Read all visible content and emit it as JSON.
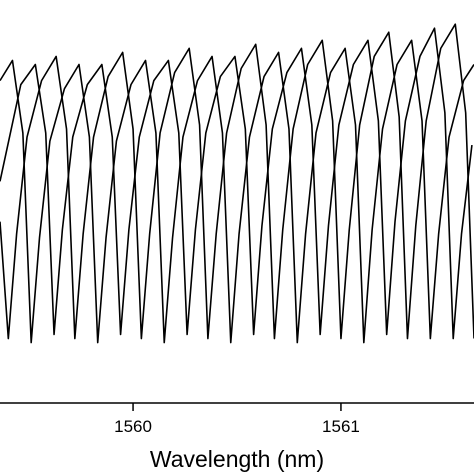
{
  "chart_data": {
    "type": "line",
    "xlabel": "Wavelength (nm)",
    "color": "#000000",
    "xlim": [
      1559.36,
      1561.64
    ],
    "xticks": [
      1560,
      1561
    ],
    "ylim": [
      0,
      1
    ],
    "series": [
      {
        "x": [
          1559.36,
          1559.4,
          1559.44,
          1559.49,
          1559.56,
          1559.63,
          1559.68,
          1559.72,
          1559.76,
          1559.81,
          1559.88,
          1559.95,
          1560.0,
          1560.04,
          1560.08,
          1560.13,
          1560.2,
          1560.27,
          1560.32,
          1560.36,
          1560.4,
          1560.45,
          1560.52,
          1560.59,
          1560.64,
          1560.68,
          1560.72,
          1560.77,
          1560.84,
          1560.91,
          1560.96,
          1561.0,
          1561.04,
          1561.09,
          1561.16,
          1561.23,
          1561.28,
          1561.32,
          1561.36,
          1561.41,
          1561.48,
          1561.55,
          1561.6,
          1561.64
        ],
        "values": [
          0.45,
          0.16,
          0.42,
          0.66,
          0.8,
          0.86,
          0.68,
          0.16,
          0.42,
          0.66,
          0.81,
          0.87,
          0.68,
          0.16,
          0.42,
          0.67,
          0.82,
          0.88,
          0.69,
          0.16,
          0.42,
          0.67,
          0.83,
          0.89,
          0.69,
          0.16,
          0.43,
          0.68,
          0.84,
          0.9,
          0.7,
          0.16,
          0.43,
          0.69,
          0.86,
          0.92,
          0.71,
          0.16,
          0.44,
          0.7,
          0.88,
          0.94,
          0.72,
          0.16
        ]
      },
      {
        "x": [
          1559.36,
          1559.42,
          1559.47,
          1559.51,
          1559.55,
          1559.6,
          1559.67,
          1559.74,
          1559.79,
          1559.83,
          1559.87,
          1559.92,
          1559.99,
          1560.06,
          1560.11,
          1560.15,
          1560.19,
          1560.24,
          1560.31,
          1560.38,
          1560.43,
          1560.47,
          1560.51,
          1560.56,
          1560.63,
          1560.7,
          1560.75,
          1560.79,
          1560.83,
          1560.88,
          1560.95,
          1561.02,
          1561.07,
          1561.11,
          1561.15,
          1561.2,
          1561.27,
          1561.34,
          1561.39,
          1561.43,
          1561.47,
          1561.52,
          1561.59,
          1561.64
        ],
        "values": [
          0.8,
          0.85,
          0.67,
          0.15,
          0.41,
          0.65,
          0.78,
          0.84,
          0.66,
          0.15,
          0.41,
          0.65,
          0.79,
          0.85,
          0.67,
          0.15,
          0.41,
          0.66,
          0.8,
          0.86,
          0.67,
          0.15,
          0.42,
          0.66,
          0.81,
          0.87,
          0.68,
          0.15,
          0.42,
          0.67,
          0.82,
          0.88,
          0.69,
          0.15,
          0.43,
          0.68,
          0.84,
          0.9,
          0.7,
          0.16,
          0.42,
          0.66,
          0.8,
          0.84
        ]
      },
      {
        "x": [
          1559.36,
          1559.46,
          1559.53,
          1559.58,
          1559.62,
          1559.66,
          1559.71,
          1559.78,
          1559.85,
          1559.9,
          1559.94,
          1559.98,
          1560.03,
          1560.1,
          1560.17,
          1560.22,
          1560.26,
          1560.3,
          1560.35,
          1560.42,
          1560.49,
          1560.54,
          1560.58,
          1560.62,
          1560.67,
          1560.74,
          1560.81,
          1560.86,
          1560.9,
          1560.94,
          1560.99,
          1561.06,
          1561.13,
          1561.18,
          1561.22,
          1561.26,
          1561.31,
          1561.38,
          1561.45,
          1561.5,
          1561.54,
          1561.58,
          1561.63
        ],
        "values": [
          0.55,
          0.79,
          0.84,
          0.67,
          0.17,
          0.43,
          0.66,
          0.79,
          0.84,
          0.66,
          0.17,
          0.43,
          0.66,
          0.8,
          0.85,
          0.67,
          0.17,
          0.43,
          0.67,
          0.81,
          0.86,
          0.68,
          0.17,
          0.44,
          0.68,
          0.82,
          0.88,
          0.69,
          0.17,
          0.44,
          0.69,
          0.84,
          0.9,
          0.7,
          0.17,
          0.45,
          0.7,
          0.86,
          0.93,
          0.72,
          0.16,
          0.42,
          0.64
        ]
      }
    ]
  }
}
